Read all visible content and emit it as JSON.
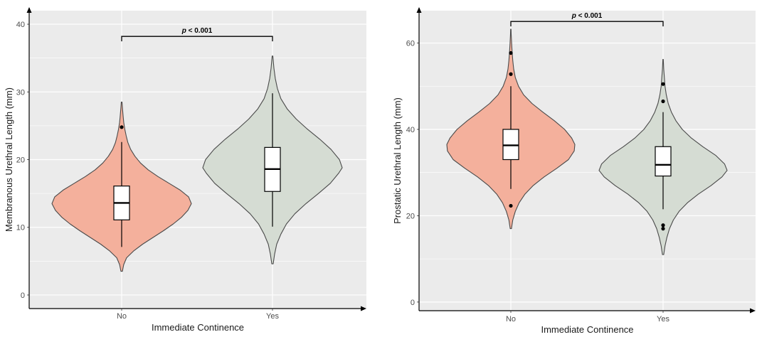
{
  "colors": {
    "panel_bg": "#ebebeb",
    "grid": "#ffffff",
    "no_fill": "#f4b09c",
    "yes_fill": "#d5dcd3",
    "outline": "#4a4a4a",
    "box_fill": "#ffffff",
    "point": "#000000"
  },
  "chart_data": [
    {
      "type": "violin",
      "xlabel": "Immediate Continence",
      "ylabel": "Membranous Urethral Length (mm)",
      "categories": [
        "No",
        "Yes"
      ],
      "ylim": [
        -2,
        42
      ],
      "yticks": [
        0,
        10,
        20,
        30,
        40
      ],
      "grid": true,
      "significance": {
        "label": "p < 0.001",
        "y": 38.2
      },
      "groups": [
        {
          "name": "No",
          "box": {
            "q1": 11.1,
            "median": 13.6,
            "q3": 16.1,
            "whisker_low": 7.1,
            "whisker_high": 22.6
          },
          "outliers": [
            24.8
          ],
          "density": [
            [
              3.5,
              0.01
            ],
            [
              4.5,
              0.03
            ],
            [
              5.5,
              0.07
            ],
            [
              6.5,
              0.17
            ],
            [
              7.5,
              0.3
            ],
            [
              8.5,
              0.45
            ],
            [
              9.5,
              0.6
            ],
            [
              10.5,
              0.74
            ],
            [
              11.5,
              0.86
            ],
            [
              12.5,
              0.95
            ],
            [
              13.5,
              1.0
            ],
            [
              14.5,
              0.96
            ],
            [
              15.5,
              0.84
            ],
            [
              16.5,
              0.68
            ],
            [
              17.5,
              0.52
            ],
            [
              18.5,
              0.38
            ],
            [
              19.5,
              0.27
            ],
            [
              20.5,
              0.19
            ],
            [
              21.5,
              0.13
            ],
            [
              22.5,
              0.09
            ],
            [
              23.5,
              0.065
            ],
            [
              24.5,
              0.045
            ],
            [
              25.5,
              0.03
            ],
            [
              26.5,
              0.02
            ],
            [
              27.5,
              0.012
            ],
            [
              28.5,
              0.005
            ]
          ]
        },
        {
          "name": "Yes",
          "box": {
            "q1": 15.3,
            "median": 18.6,
            "q3": 21.8,
            "whisker_low": 10.1,
            "whisker_high": 29.8
          },
          "outliers": [],
          "density": [
            [
              4.6,
              0.01
            ],
            [
              6,
              0.03
            ],
            [
              7.5,
              0.06
            ],
            [
              9,
              0.12
            ],
            [
              10.5,
              0.2
            ],
            [
              12,
              0.32
            ],
            [
              13.5,
              0.48
            ],
            [
              15,
              0.66
            ],
            [
              16.5,
              0.83
            ],
            [
              18,
              0.95
            ],
            [
              18.8,
              1.0
            ],
            [
              20,
              0.96
            ],
            [
              21.5,
              0.84
            ],
            [
              23,
              0.68
            ],
            [
              24.5,
              0.5
            ],
            [
              26,
              0.34
            ],
            [
              27.5,
              0.21
            ],
            [
              29,
              0.12
            ],
            [
              30.5,
              0.07
            ],
            [
              32,
              0.04
            ],
            [
              33.5,
              0.02
            ],
            [
              35.3,
              0.005
            ]
          ]
        }
      ]
    },
    {
      "type": "violin",
      "xlabel": "Immediate Continence",
      "ylabel": "Prostatic Urethral Length (mm)",
      "categories": [
        "No",
        "Yes"
      ],
      "ylim": [
        -2,
        67.5
      ],
      "yticks": [
        0,
        20,
        40,
        60
      ],
      "grid": true,
      "significance": {
        "label": "p < 0.001",
        "y": 65.0
      },
      "groups": [
        {
          "name": "No",
          "box": {
            "q1": 33.0,
            "median": 36.3,
            "q3": 40.0,
            "whisker_low": 26.2,
            "whisker_high": 50.0
          },
          "outliers": [
            22.3,
            52.8,
            57.7
          ],
          "density": [
            [
              17,
              0.01
            ],
            [
              19,
              0.03
            ],
            [
              21,
              0.07
            ],
            [
              23,
              0.13
            ],
            [
              25,
              0.22
            ],
            [
              27,
              0.35
            ],
            [
              29,
              0.52
            ],
            [
              31,
              0.72
            ],
            [
              33,
              0.9
            ],
            [
              35,
              0.99
            ],
            [
              36.5,
              1.0
            ],
            [
              38,
              0.95
            ],
            [
              40,
              0.84
            ],
            [
              42,
              0.68
            ],
            [
              44,
              0.5
            ],
            [
              46,
              0.33
            ],
            [
              48,
              0.2
            ],
            [
              50,
              0.12
            ],
            [
              52,
              0.07
            ],
            [
              54,
              0.045
            ],
            [
              56,
              0.03
            ],
            [
              58,
              0.02
            ],
            [
              60,
              0.012
            ],
            [
              62,
              0.006
            ],
            [
              63.2,
              0.003
            ]
          ]
        },
        {
          "name": "Yes",
          "box": {
            "q1": 29.2,
            "median": 31.8,
            "q3": 36.0,
            "whisker_low": 21.5,
            "whisker_high": 44.0
          },
          "outliers": [
            17.0,
            17.8,
            46.5,
            50.5
          ],
          "density": [
            [
              11,
              0.01
            ],
            [
              13,
              0.03
            ],
            [
              15,
              0.06
            ],
            [
              17,
              0.1
            ],
            [
              19,
              0.16
            ],
            [
              21,
              0.25
            ],
            [
              23,
              0.38
            ],
            [
              25,
              0.55
            ],
            [
              27,
              0.75
            ],
            [
              29,
              0.92
            ],
            [
              30.5,
              1.0
            ],
            [
              32,
              0.96
            ],
            [
              34,
              0.82
            ],
            [
              36,
              0.62
            ],
            [
              38,
              0.44
            ],
            [
              40,
              0.3
            ],
            [
              42,
              0.2
            ],
            [
              44,
              0.13
            ],
            [
              46,
              0.08
            ],
            [
              48,
              0.05
            ],
            [
              50,
              0.03
            ],
            [
              52,
              0.02
            ],
            [
              54,
              0.01
            ],
            [
              56.2,
              0.003
            ]
          ]
        }
      ]
    }
  ]
}
